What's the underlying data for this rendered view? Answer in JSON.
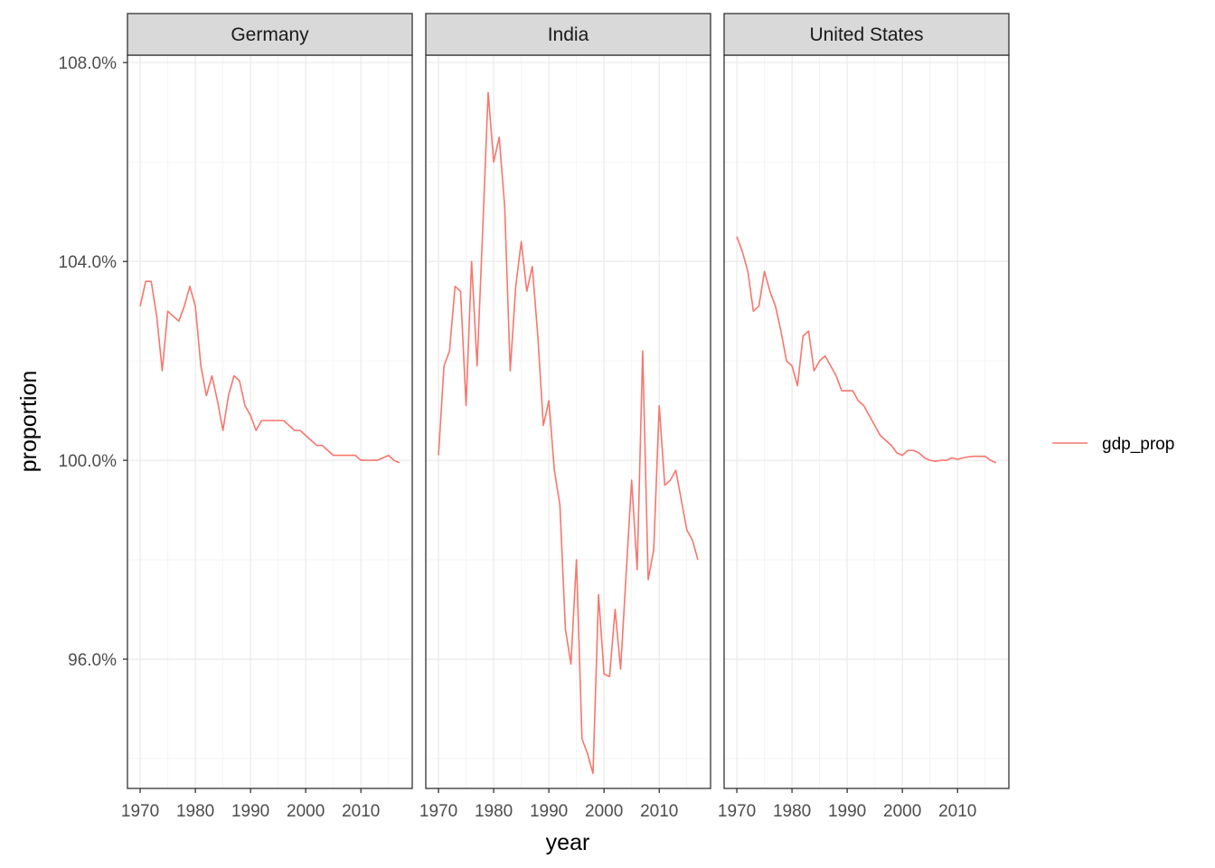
{
  "chart_data": {
    "type": "line",
    "facet_by": "country",
    "xlabel": "year",
    "ylabel": "proportion",
    "xlim": [
      1967.7,
      2019.3
    ],
    "ylim": [
      93.4,
      108.15
    ],
    "x_ticks": [
      1970,
      1980,
      1990,
      2000,
      2010
    ],
    "y_ticks": [
      96.0,
      100.0,
      104.0,
      108.0
    ],
    "y_tick_labels": [
      "96.0%",
      "100.0%",
      "104.0%",
      "108.0%"
    ],
    "grid": true,
    "legend": {
      "position": "right",
      "entries": [
        "gdp_prop"
      ]
    },
    "colors": {
      "gdp_prop": "#F8766D"
    },
    "facets": [
      {
        "label": "Germany",
        "series": [
          {
            "name": "gdp_prop",
            "x": [
              1970,
              1971,
              1972,
              1973,
              1974,
              1975,
              1976,
              1977,
              1978,
              1979,
              1980,
              1981,
              1982,
              1983,
              1984,
              1985,
              1986,
              1987,
              1988,
              1989,
              1990,
              1991,
              1992,
              1993,
              1994,
              1995,
              1996,
              1997,
              1998,
              1999,
              2000,
              2001,
              2002,
              2003,
              2004,
              2005,
              2006,
              2007,
              2008,
              2009,
              2010,
              2011,
              2012,
              2013,
              2014,
              2015,
              2016,
              2017
            ],
            "y": [
              103.1,
              103.6,
              103.6,
              102.9,
              101.8,
              103.0,
              102.9,
              102.8,
              103.1,
              103.5,
              103.1,
              101.9,
              101.3,
              101.7,
              101.2,
              100.6,
              101.3,
              101.7,
              101.6,
              101.1,
              100.9,
              100.6,
              100.8,
              100.8,
              100.8,
              100.8,
              100.8,
              100.7,
              100.6,
              100.6,
              100.5,
              100.4,
              100.3,
              100.3,
              100.2,
              100.1,
              100.1,
              100.1,
              100.1,
              100.1,
              100.0,
              100.0,
              100.0,
              100.0,
              100.05,
              100.1,
              100.0,
              99.95
            ]
          }
        ]
      },
      {
        "label": "India",
        "series": [
          {
            "name": "gdp_prop",
            "x": [
              1970,
              1971,
              1972,
              1973,
              1974,
              1975,
              1976,
              1977,
              1978,
              1979,
              1980,
              1981,
              1982,
              1983,
              1984,
              1985,
              1986,
              1987,
              1988,
              1989,
              1990,
              1991,
              1992,
              1993,
              1994,
              1995,
              1996,
              1997,
              1998,
              1999,
              2000,
              2001,
              2002,
              2003,
              2004,
              2005,
              2006,
              2007,
              2008,
              2009,
              2010,
              2011,
              2012,
              2013,
              2014,
              2015,
              2016,
              2017
            ],
            "y": [
              100.1,
              101.9,
              102.2,
              103.5,
              103.4,
              101.1,
              104.0,
              101.9,
              104.6,
              107.4,
              106.0,
              106.5,
              105.1,
              101.8,
              103.5,
              104.4,
              103.4,
              103.9,
              102.5,
              100.7,
              101.2,
              99.8,
              99.1,
              96.6,
              95.9,
              98.0,
              94.4,
              94.1,
              93.7,
              97.3,
              95.7,
              95.65,
              97.0,
              95.8,
              97.7,
              99.6,
              97.8,
              102.2,
              97.6,
              98.2,
              101.1,
              99.5,
              99.6,
              99.8,
              99.2,
              98.6,
              98.4,
              98.0
            ]
          }
        ]
      },
      {
        "label": "United States",
        "series": [
          {
            "name": "gdp_prop",
            "x": [
              1970,
              1971,
              1972,
              1973,
              1974,
              1975,
              1976,
              1977,
              1978,
              1979,
              1980,
              1981,
              1982,
              1983,
              1984,
              1985,
              1986,
              1987,
              1988,
              1989,
              1990,
              1991,
              1992,
              1993,
              1994,
              1995,
              1996,
              1997,
              1998,
              1999,
              2000,
              2001,
              2002,
              2003,
              2004,
              2005,
              2006,
              2007,
              2008,
              2009,
              2010,
              2011,
              2012,
              2013,
              2014,
              2015,
              2016,
              2017
            ],
            "y": [
              104.5,
              104.2,
              103.8,
              103.0,
              103.1,
              103.8,
              103.4,
              103.1,
              102.6,
              102.0,
              101.9,
              101.5,
              102.5,
              102.6,
              101.8,
              102.0,
              102.1,
              101.9,
              101.7,
              101.4,
              101.4,
              101.4,
              101.2,
              101.1,
              100.9,
              100.7,
              100.5,
              100.4,
              100.3,
              100.15,
              100.1,
              100.2,
              100.2,
              100.15,
              100.05,
              100.0,
              99.98,
              100.0,
              100.0,
              100.05,
              100.02,
              100.05,
              100.07,
              100.08,
              100.08,
              100.08,
              100.0,
              99.95
            ]
          }
        ]
      }
    ]
  }
}
